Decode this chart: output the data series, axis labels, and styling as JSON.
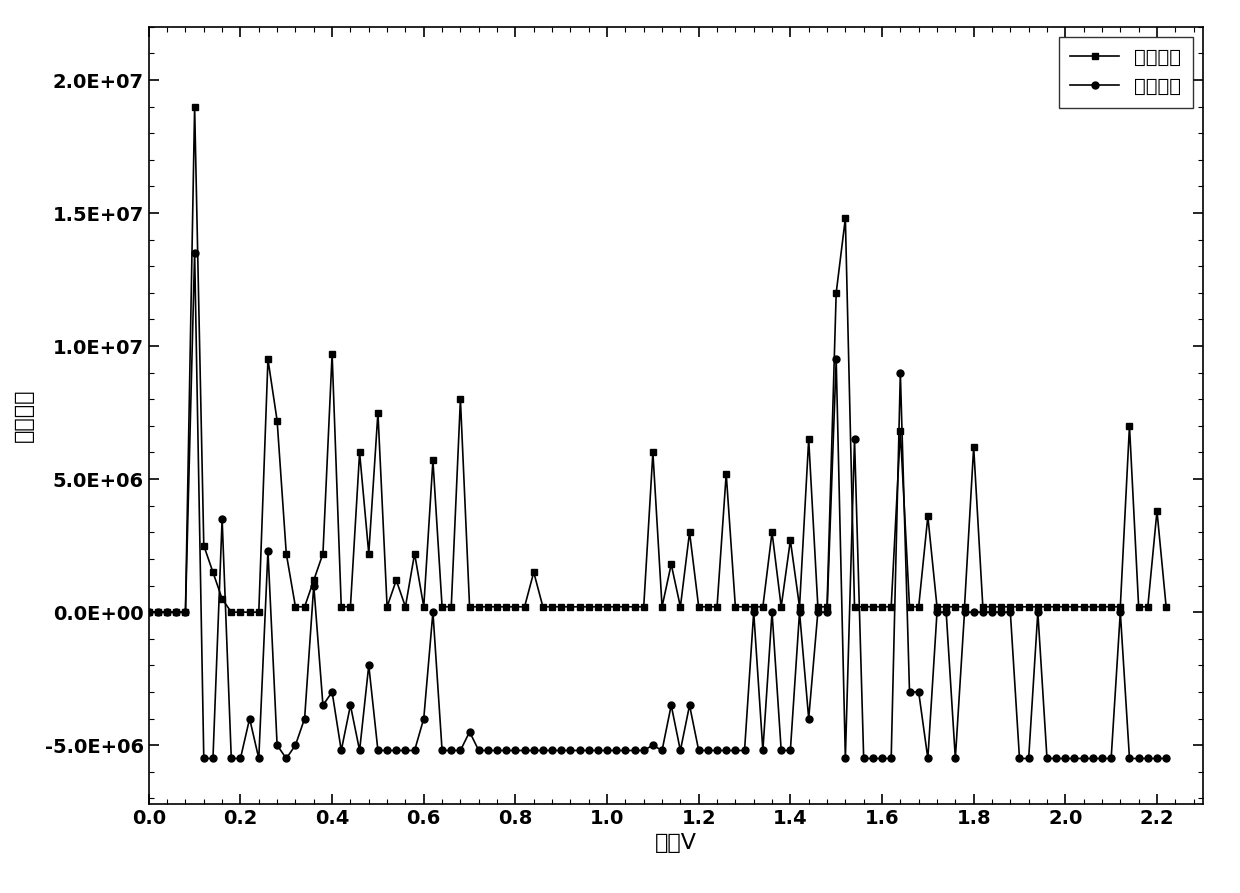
{
  "title": "",
  "xlabel": "试剂V",
  "ylabel": "滴定参数",
  "xlim": [
    0.0,
    2.3
  ],
  "ylim": [
    -7000000,
    22000000
  ],
  "yticks": [
    -5000000,
    0,
    5000000,
    10000000,
    15000000,
    20000000
  ],
  "ytick_labels": [
    "-5.0E+06",
    "0.0E+00",
    "5.0E+06",
    "1.0E+07",
    "1.5E+07",
    "2.0E+07"
  ],
  "xticks": [
    0.0,
    0.2,
    0.4,
    0.6,
    0.8,
    1.0,
    1.2,
    1.4,
    1.6,
    1.8,
    2.0,
    2.2
  ],
  "legend_labels": [
    "校正数据",
    "原始数据"
  ],
  "corrected_x": [
    0.0,
    0.02,
    0.04,
    0.06,
    0.08,
    0.1,
    0.12,
    0.14,
    0.16,
    0.18,
    0.2,
    0.22,
    0.24,
    0.26,
    0.28,
    0.3,
    0.32,
    0.34,
    0.36,
    0.38,
    0.4,
    0.42,
    0.44,
    0.46,
    0.48,
    0.5,
    0.52,
    0.54,
    0.56,
    0.58,
    0.6,
    0.62,
    0.64,
    0.66,
    0.68,
    0.7,
    0.72,
    0.74,
    0.76,
    0.78,
    0.8,
    0.82,
    0.84,
    0.86,
    0.88,
    0.9,
    0.92,
    0.94,
    0.96,
    0.98,
    1.0,
    1.02,
    1.04,
    1.06,
    1.08,
    1.1,
    1.12,
    1.14,
    1.16,
    1.18,
    1.2,
    1.22,
    1.24,
    1.26,
    1.28,
    1.3,
    1.32,
    1.34,
    1.36,
    1.38,
    1.4,
    1.42,
    1.44,
    1.46,
    1.48,
    1.5,
    1.52,
    1.54,
    1.56,
    1.58,
    1.6,
    1.62,
    1.64,
    1.66,
    1.68,
    1.7,
    1.72,
    1.74,
    1.76,
    1.78,
    1.8,
    1.82,
    1.84,
    1.86,
    1.88,
    1.9,
    1.92,
    1.94,
    1.96,
    1.98,
    2.0,
    2.02,
    2.04,
    2.06,
    2.08,
    2.1,
    2.12,
    2.14,
    2.16,
    2.18,
    2.2,
    2.22
  ],
  "corrected_y": [
    0,
    0,
    0,
    0,
    0,
    19000000,
    2500000,
    1500000,
    500000,
    0,
    0,
    0,
    0,
    9500000,
    7200000,
    2200000,
    200000,
    200000,
    1200000,
    2200000,
    9700000,
    200000,
    200000,
    6000000,
    2200000,
    7500000,
    200000,
    1200000,
    200000,
    2200000,
    200000,
    5700000,
    200000,
    200000,
    8000000,
    200000,
    200000,
    200000,
    200000,
    200000,
    200000,
    200000,
    1500000,
    200000,
    200000,
    200000,
    200000,
    200000,
    200000,
    200000,
    200000,
    200000,
    200000,
    200000,
    200000,
    6000000,
    200000,
    1800000,
    200000,
    3000000,
    200000,
    200000,
    200000,
    5200000,
    200000,
    200000,
    200000,
    200000,
    3000000,
    200000,
    2700000,
    200000,
    6500000,
    200000,
    200000,
    12000000,
    14800000,
    200000,
    200000,
    200000,
    200000,
    200000,
    6800000,
    200000,
    200000,
    3600000,
    200000,
    200000,
    200000,
    200000,
    6200000,
    200000,
    200000,
    200000,
    200000,
    200000,
    200000,
    200000,
    200000,
    200000,
    200000,
    200000,
    200000,
    200000,
    200000,
    200000,
    200000,
    7000000,
    200000,
    200000,
    3800000,
    200000
  ],
  "original_x": [
    0.0,
    0.02,
    0.04,
    0.06,
    0.08,
    0.1,
    0.12,
    0.14,
    0.16,
    0.18,
    0.2,
    0.22,
    0.24,
    0.26,
    0.28,
    0.3,
    0.32,
    0.34,
    0.36,
    0.38,
    0.4,
    0.42,
    0.44,
    0.46,
    0.48,
    0.5,
    0.52,
    0.54,
    0.56,
    0.58,
    0.6,
    0.62,
    0.64,
    0.66,
    0.68,
    0.7,
    0.72,
    0.74,
    0.76,
    0.78,
    0.8,
    0.82,
    0.84,
    0.86,
    0.88,
    0.9,
    0.92,
    0.94,
    0.96,
    0.98,
    1.0,
    1.02,
    1.04,
    1.06,
    1.08,
    1.1,
    1.12,
    1.14,
    1.16,
    1.18,
    1.2,
    1.22,
    1.24,
    1.26,
    1.28,
    1.3,
    1.32,
    1.34,
    1.36,
    1.38,
    1.4,
    1.42,
    1.44,
    1.46,
    1.48,
    1.5,
    1.52,
    1.54,
    1.56,
    1.58,
    1.6,
    1.62,
    1.64,
    1.66,
    1.68,
    1.7,
    1.72,
    1.74,
    1.76,
    1.78,
    1.8,
    1.82,
    1.84,
    1.86,
    1.88,
    1.9,
    1.92,
    1.94,
    1.96,
    1.98,
    2.0,
    2.02,
    2.04,
    2.06,
    2.08,
    2.1,
    2.12,
    2.14,
    2.16,
    2.18,
    2.2,
    2.22
  ],
  "original_y": [
    0,
    0,
    0,
    0,
    0,
    13500000,
    -5500000,
    -5500000,
    3500000,
    -5500000,
    -5500000,
    -4000000,
    -5500000,
    2300000,
    -5000000,
    -5500000,
    -5000000,
    -4000000,
    1000000,
    -3500000,
    -3000000,
    -5200000,
    -3500000,
    -5200000,
    -2000000,
    -5200000,
    -5200000,
    -5200000,
    -5200000,
    -5200000,
    -4000000,
    0,
    -5200000,
    -5200000,
    -5200000,
    -4500000,
    -5200000,
    -5200000,
    -5200000,
    -5200000,
    -5200000,
    -5200000,
    -5200000,
    -5200000,
    -5200000,
    -5200000,
    -5200000,
    -5200000,
    -5200000,
    -5200000,
    -5200000,
    -5200000,
    -5200000,
    -5200000,
    -5200000,
    -5000000,
    -5200000,
    -3500000,
    -5200000,
    -3500000,
    -5200000,
    -5200000,
    -5200000,
    -5200000,
    -5200000,
    -5200000,
    0,
    -5200000,
    0,
    -5200000,
    -5200000,
    0,
    -4000000,
    0,
    0,
    9500000,
    -5500000,
    6500000,
    -5500000,
    -5500000,
    -5500000,
    -5500000,
    9000000,
    -3000000,
    -3000000,
    -5500000,
    0,
    0,
    -5500000,
    0,
    0,
    0,
    0,
    0,
    0,
    -5500000,
    -5500000,
    0,
    -5500000,
    -5500000,
    -5500000,
    -5500000,
    -5500000,
    -5500000,
    -5500000,
    -5500000,
    0,
    -5500000,
    -5500000,
    -5500000,
    -5500000,
    -5500000
  ],
  "line_color": "#000000",
  "marker_square": "s",
  "marker_circle": "o",
  "marker_size": 5,
  "linewidth": 1.2
}
